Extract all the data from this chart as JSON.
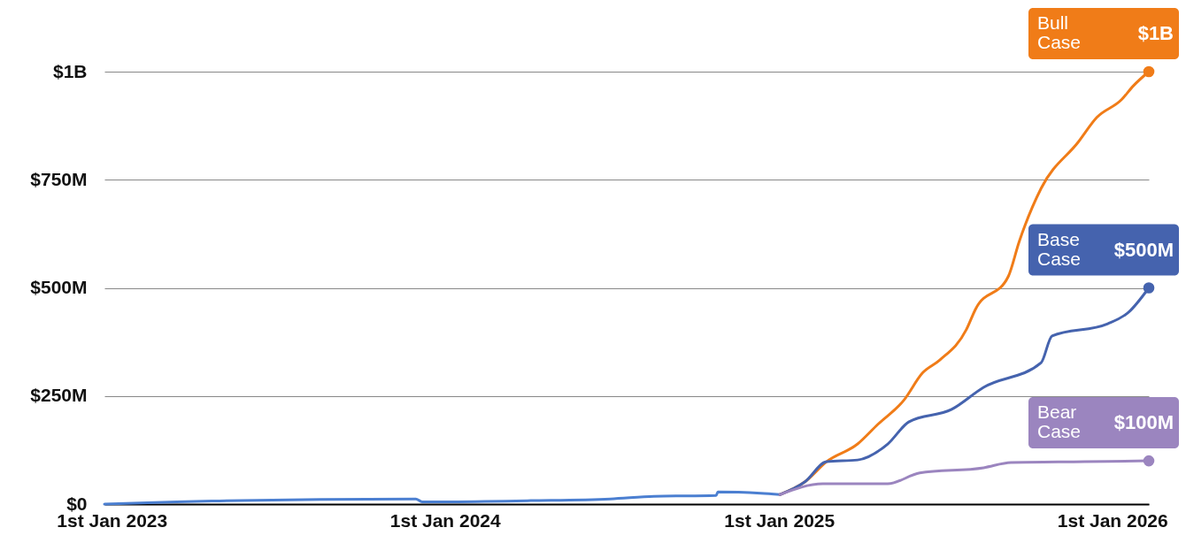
{
  "chart_data": {
    "type": "line",
    "xlim": [
      "2022-12-24",
      "2026-02-10"
    ],
    "xticks": [
      {
        "value": "2023-01-01",
        "label": "1st Jan 2023"
      },
      {
        "value": "2024-01-01",
        "label": "1st Jan 2024"
      },
      {
        "value": "2025-01-01",
        "label": "1st Jan 2025"
      },
      {
        "value": "2026-01-01",
        "label": "1st Jan 2026"
      }
    ],
    "ylim": [
      0,
      1000000000
    ],
    "yticks": [
      {
        "value": 0,
        "label": "$0"
      },
      {
        "value": 250000000,
        "label": "$250M"
      },
      {
        "value": 500000000,
        "label": "$500M"
      },
      {
        "value": 750000000,
        "label": "$750M"
      },
      {
        "value": 1000000000,
        "label": "$1B"
      }
    ],
    "grid": "y",
    "line_style": "solid",
    "series": [
      {
        "color": "#4b7fd1",
        "x": [
          "2022-12-24",
          "2023-03-13",
          "2023-04-21",
          "2023-11-30",
          "2023-12-07",
          "2024-04-04",
          "2024-06-30",
          "2024-08-17",
          "2024-10-24",
          "2024-10-26",
          "2024-12-12",
          "2025-01-02"
        ],
        "values": [
          0,
          5000000,
          7000000,
          12000000,
          5000000,
          8000000,
          12000000,
          18000000,
          20000000,
          28000000,
          25000000,
          22000000
        ]
      },
      {
        "name": "Bull Case",
        "color": "#f07c18",
        "x": [
          "2025-01-02",
          "2025-01-29",
          "2025-02-22",
          "2025-03-28",
          "2025-04-19",
          "2025-05-18",
          "2025-06-07",
          "2025-06-26",
          "2025-07-25",
          "2025-08-04",
          "2025-09-09",
          "2025-09-21",
          "2025-10-15",
          "2025-11-25",
          "2025-12-15",
          "2026-01-11",
          "2026-01-24",
          "2026-02-10"
        ],
        "values": [
          22000000,
          51000000,
          98000000,
          139000000,
          184000000,
          241000000,
          303000000,
          333000000,
          403000000,
          450000000,
          526000000,
          607000000,
          730000000,
          838000000,
          894000000,
          935000000,
          967000000,
          1000000000
        ]
      },
      {
        "name": "Base Case",
        "color": "#4563ae",
        "x": [
          "2025-01-02",
          "2025-01-29",
          "2025-02-22",
          "2025-03-28",
          "2025-04-30",
          "2025-05-23",
          "2025-07-09",
          "2025-08-13",
          "2025-10-15",
          "2025-10-27",
          "2025-12-27",
          "2026-01-19",
          "2026-02-10"
        ],
        "values": [
          22000000,
          51000000,
          98000000,
          102000000,
          139000000,
          190000000,
          219000000,
          270000000,
          327000000,
          389000000,
          417000000,
          444000000,
          500000000
        ]
      },
      {
        "name": "Bear Case",
        "color": "#9b85bf",
        "x": [
          "2025-01-02",
          "2025-02-18",
          "2025-04-30",
          "2025-06-04",
          "2025-08-13",
          "2025-09-12",
          "2025-12-02",
          "2026-02-10"
        ],
        "values": [
          22000000,
          47000000,
          47000000,
          72000000,
          84000000,
          96000000,
          98000000,
          100000000
        ]
      }
    ],
    "annotations": [
      {
        "text": "$1B",
        "x": "2026-02-10",
        "y": 1000000000
      },
      {
        "text": "$500M",
        "x": "2026-02-10",
        "y": 500000000
      },
      {
        "text": "$100M",
        "x": "2026-02-10",
        "y": 100000000
      }
    ]
  }
}
